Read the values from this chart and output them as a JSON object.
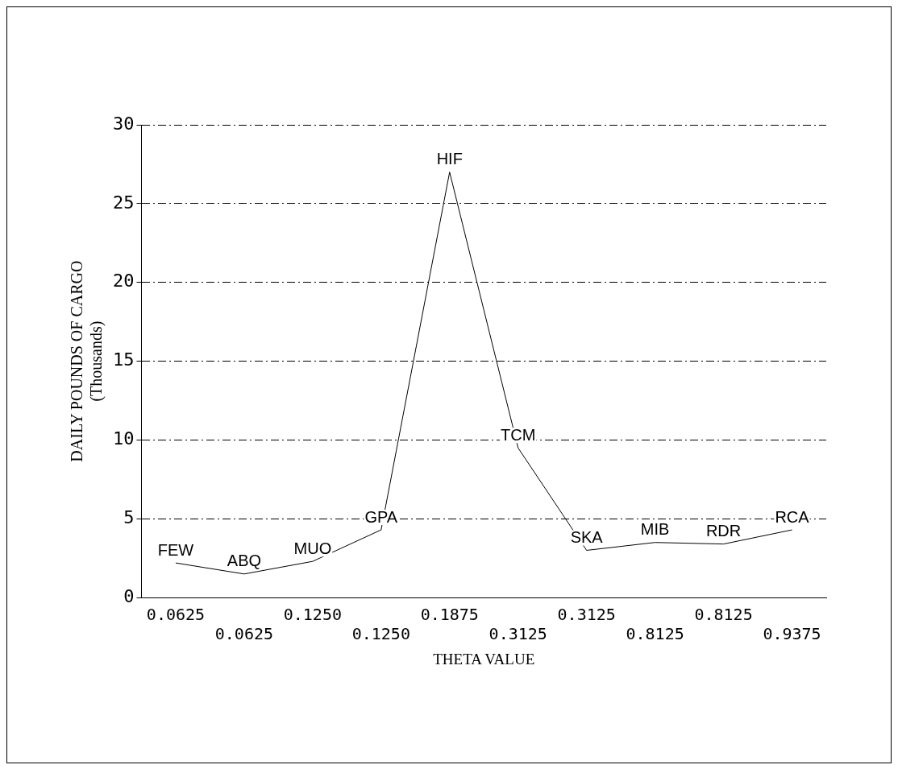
{
  "chart_data": {
    "type": "line",
    "xlabel": "THETA VALUE",
    "ylabel": "DAILY POUNDS OF CARGO\n(Thousands)",
    "categories": [
      "0.0625",
      "0.0625",
      "0.1250",
      "0.1250",
      "0.1875",
      "0.3125",
      "0.3125",
      "0.8125",
      "0.8125",
      "0.9375"
    ],
    "series": [
      {
        "color": "#000000",
        "values": [
          2.2,
          1.5,
          2.3,
          4.3,
          27,
          9.5,
          3.0,
          3.5,
          3.4,
          4.3
        ],
        "value_labels": [
          "FEW",
          "ABQ",
          "MUO",
          "GPA",
          "HIF",
          "TCM",
          "SKA",
          "MIB",
          "RDR",
          "RCA"
        ]
      }
    ],
    "ylim": [
      0,
      30
    ],
    "yticks": [
      0,
      5,
      10,
      15,
      20,
      25,
      30
    ],
    "grid": "y",
    "legend": false,
    "marker": "none",
    "line_style": "solid"
  }
}
